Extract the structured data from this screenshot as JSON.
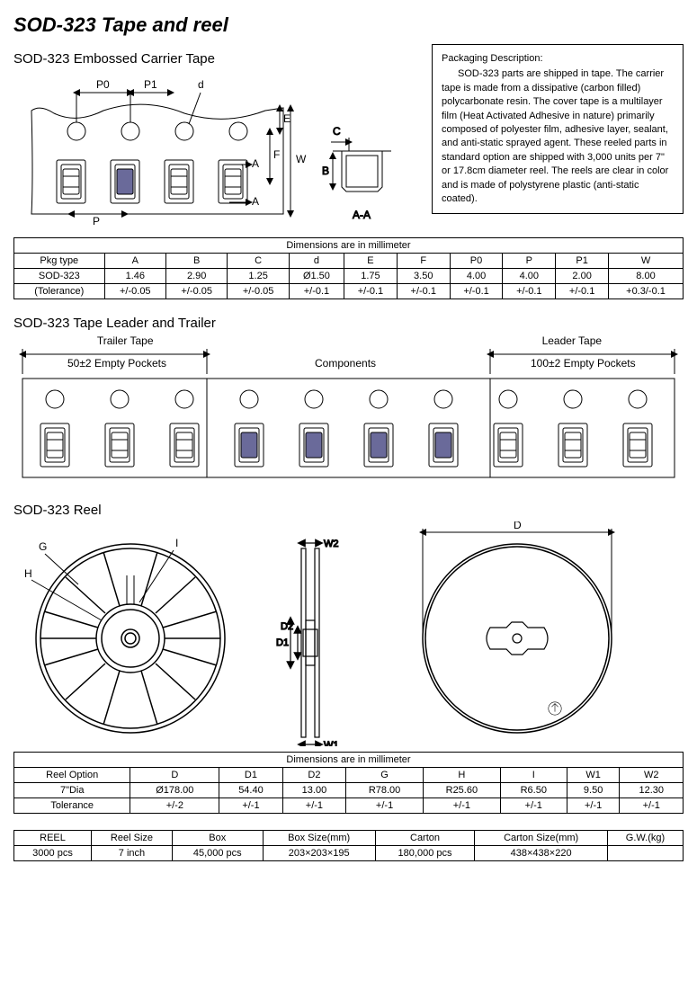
{
  "page_title": "SOD-323 Tape and reel",
  "section1": {
    "title": "SOD-323  Embossed Carrier Tape",
    "dim_labels": {
      "P0": "P0",
      "P1": "P1",
      "d": "d",
      "P": "P",
      "A": "A",
      "E": "E",
      "W": "W",
      "F": "F",
      "C": "C",
      "B": "B",
      "sec": "A-A"
    },
    "desc_title": "Packaging Description:",
    "desc_body": "SOD-323 parts are shipped in tape. The carrier tape is made from a dissipative (carbon filled) polycarbonate resin. The cover tape is a multilayer film (Heat Activated Adhesive in nature) primarily composed of polyester film, adhesive layer, sealant, and anti-static sprayed agent. These reeled parts in standard option are shipped with 3,000 units per 7\" or 17.8cm diameter reel. The reels are clear in color and is made of polystyrene plastic (anti-static coated).",
    "table": {
      "caption": "Dimensions are in millimeter",
      "columns": [
        "Pkg type",
        "A",
        "B",
        "C",
        "d",
        "E",
        "F",
        "P0",
        "P",
        "P1",
        "W"
      ],
      "rows": [
        [
          "SOD-323",
          "1.46",
          "2.90",
          "1.25",
          "Ø1.50",
          "1.75",
          "3.50",
          "4.00",
          "4.00",
          "2.00",
          "8.00"
        ],
        [
          "(Tolerance)",
          "+/-0.05",
          "+/-0.05",
          "+/-0.05",
          "+/-0.1",
          "+/-0.1",
          "+/-0.1",
          "+/-0.1",
          "+/-0.1",
          "+/-0.1",
          "+0.3/-0.1"
        ]
      ]
    }
  },
  "section2": {
    "title": "SOD-323  Tape Leader and Trailer",
    "trailer_label": "Trailer Tape",
    "trailer_sub": "50±2 Empty Pockets",
    "center_label": "Components",
    "leader_label": "Leader Tape",
    "leader_sub": "100±2 Empty Pockets"
  },
  "section3": {
    "title": "SOD-323  Reel",
    "dim_labels": {
      "G": "G",
      "H": "H",
      "I": "I",
      "D": "D",
      "D1": "D1",
      "D2": "D2",
      "W1": "W1",
      "W2": "W2"
    },
    "table": {
      "caption": "Dimensions are in millimeter",
      "columns": [
        "Reel Option",
        "D",
        "D1",
        "D2",
        "G",
        "H",
        "I",
        "W1",
        "W2"
      ],
      "rows": [
        [
          "7\"Dia",
          "Ø178.00",
          "54.40",
          "13.00",
          "R78.00",
          "R25.60",
          "R6.50",
          "9.50",
          "12.30"
        ],
        [
          "Tolerance",
          "+/-2",
          "+/-1",
          "+/-1",
          "+/-1",
          "+/-1",
          "+/-1",
          "+/-1",
          "+/-1"
        ]
      ]
    }
  },
  "section4": {
    "table": {
      "columns": [
        "REEL",
        "Reel Size",
        "Box",
        "Box Size(mm)",
        "Carton",
        "Carton Size(mm)",
        "G.W.(kg)"
      ],
      "rows": [
        [
          "3000 pcs",
          "7 inch",
          "45,000 pcs",
          "203×203×195",
          "180,000 pcs",
          "438×438×220",
          ""
        ]
      ]
    }
  },
  "colors": {
    "component_fill": "#6a6a9a",
    "stroke": "#000000",
    "bg": "#ffffff"
  }
}
